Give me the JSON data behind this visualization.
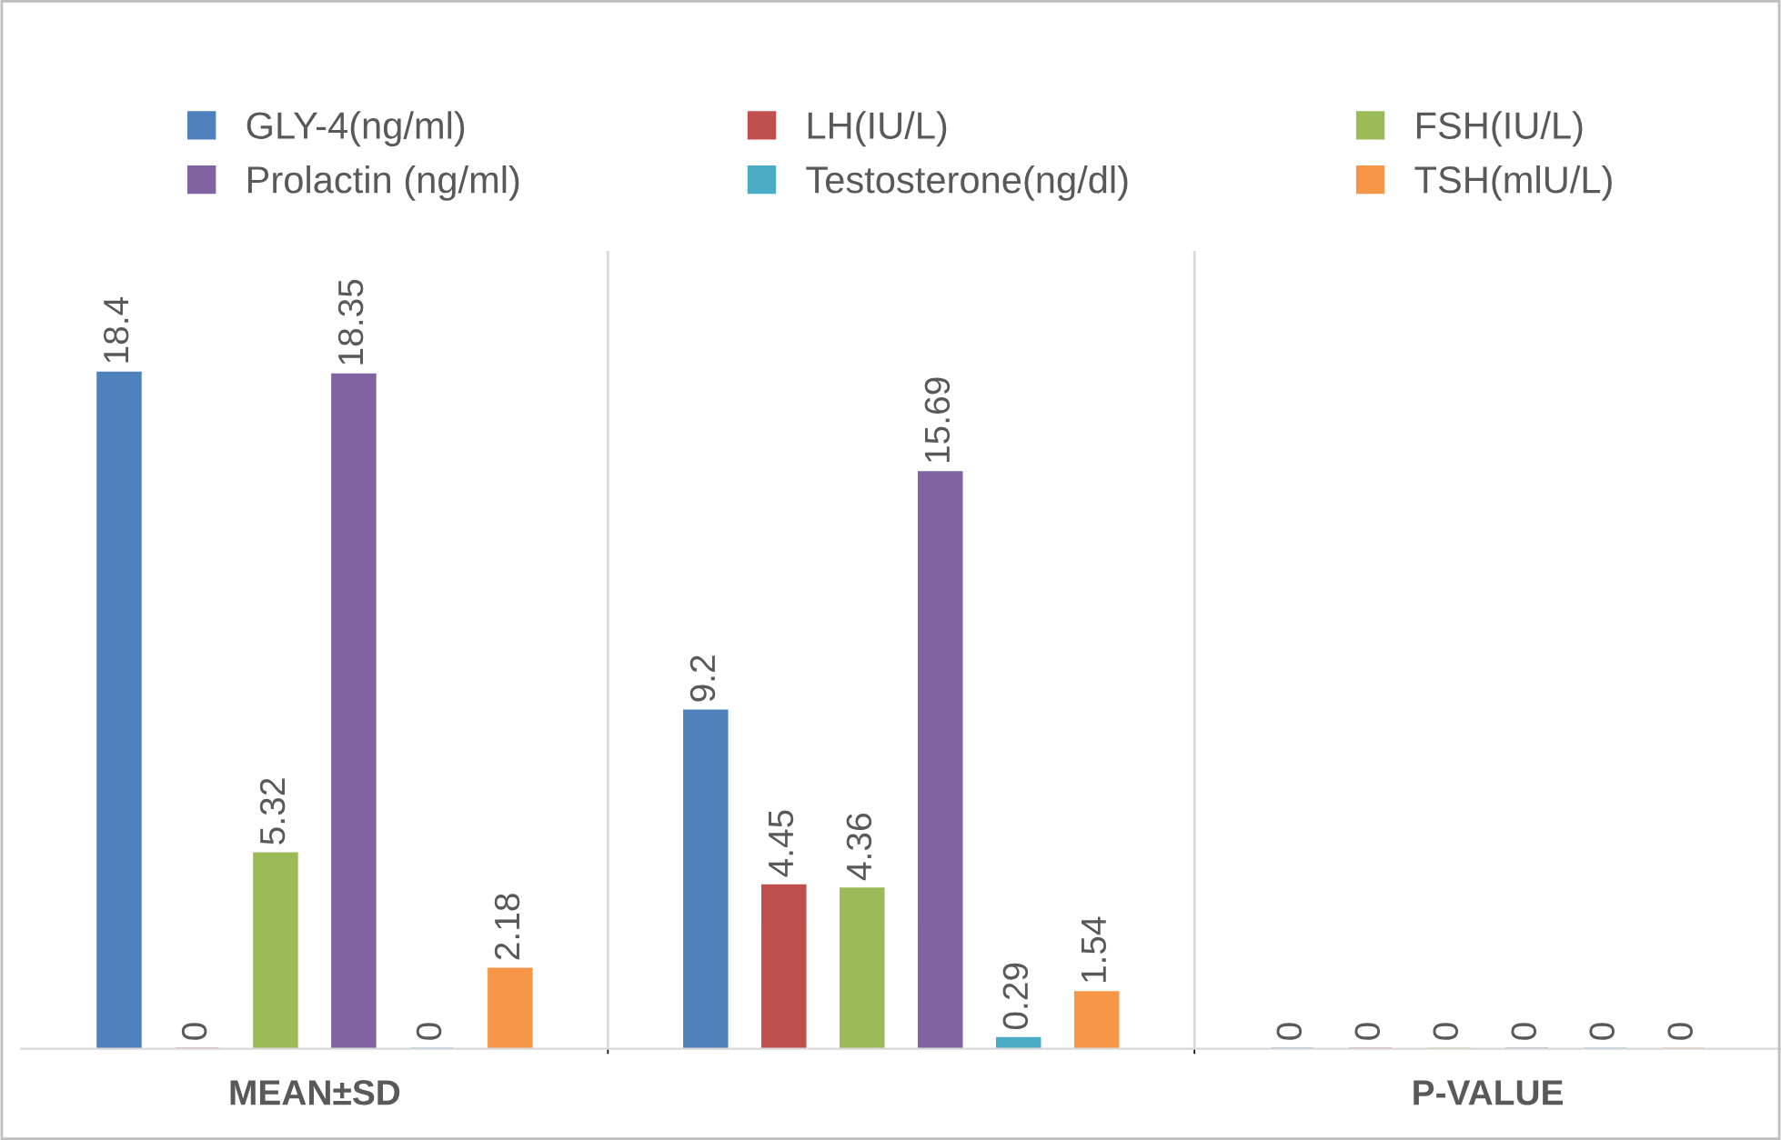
{
  "chart_data": {
    "type": "bar",
    "categories": [
      "MEAN±SD",
      null,
      "P-VALUE"
    ],
    "series": [
      {
        "name": "GLY-4(ng/ml)",
        "color": "#4f81bd",
        "values": [
          18.4,
          9.2,
          0
        ]
      },
      {
        "name": "LH(IU/L)",
        "color": "#c0504d",
        "values": [
          0,
          4.45,
          0
        ]
      },
      {
        "name": "FSH(IU/L)",
        "color": "#9bbb59",
        "values": [
          5.32,
          4.36,
          0
        ]
      },
      {
        "name": "Prolactin (ng/ml)",
        "color": "#8064a2",
        "values": [
          18.35,
          15.69,
          0
        ]
      },
      {
        "name": "Testosterone(ng/dl)",
        "color": "#4bacc6",
        "values": [
          0,
          0.29,
          0
        ]
      },
      {
        "name": "TSH(mlU/L)",
        "color": "#f79646",
        "values": [
          2.18,
          1.54,
          0
        ]
      }
    ],
    "data_labels": true,
    "grid": "x",
    "legend": "top"
  }
}
